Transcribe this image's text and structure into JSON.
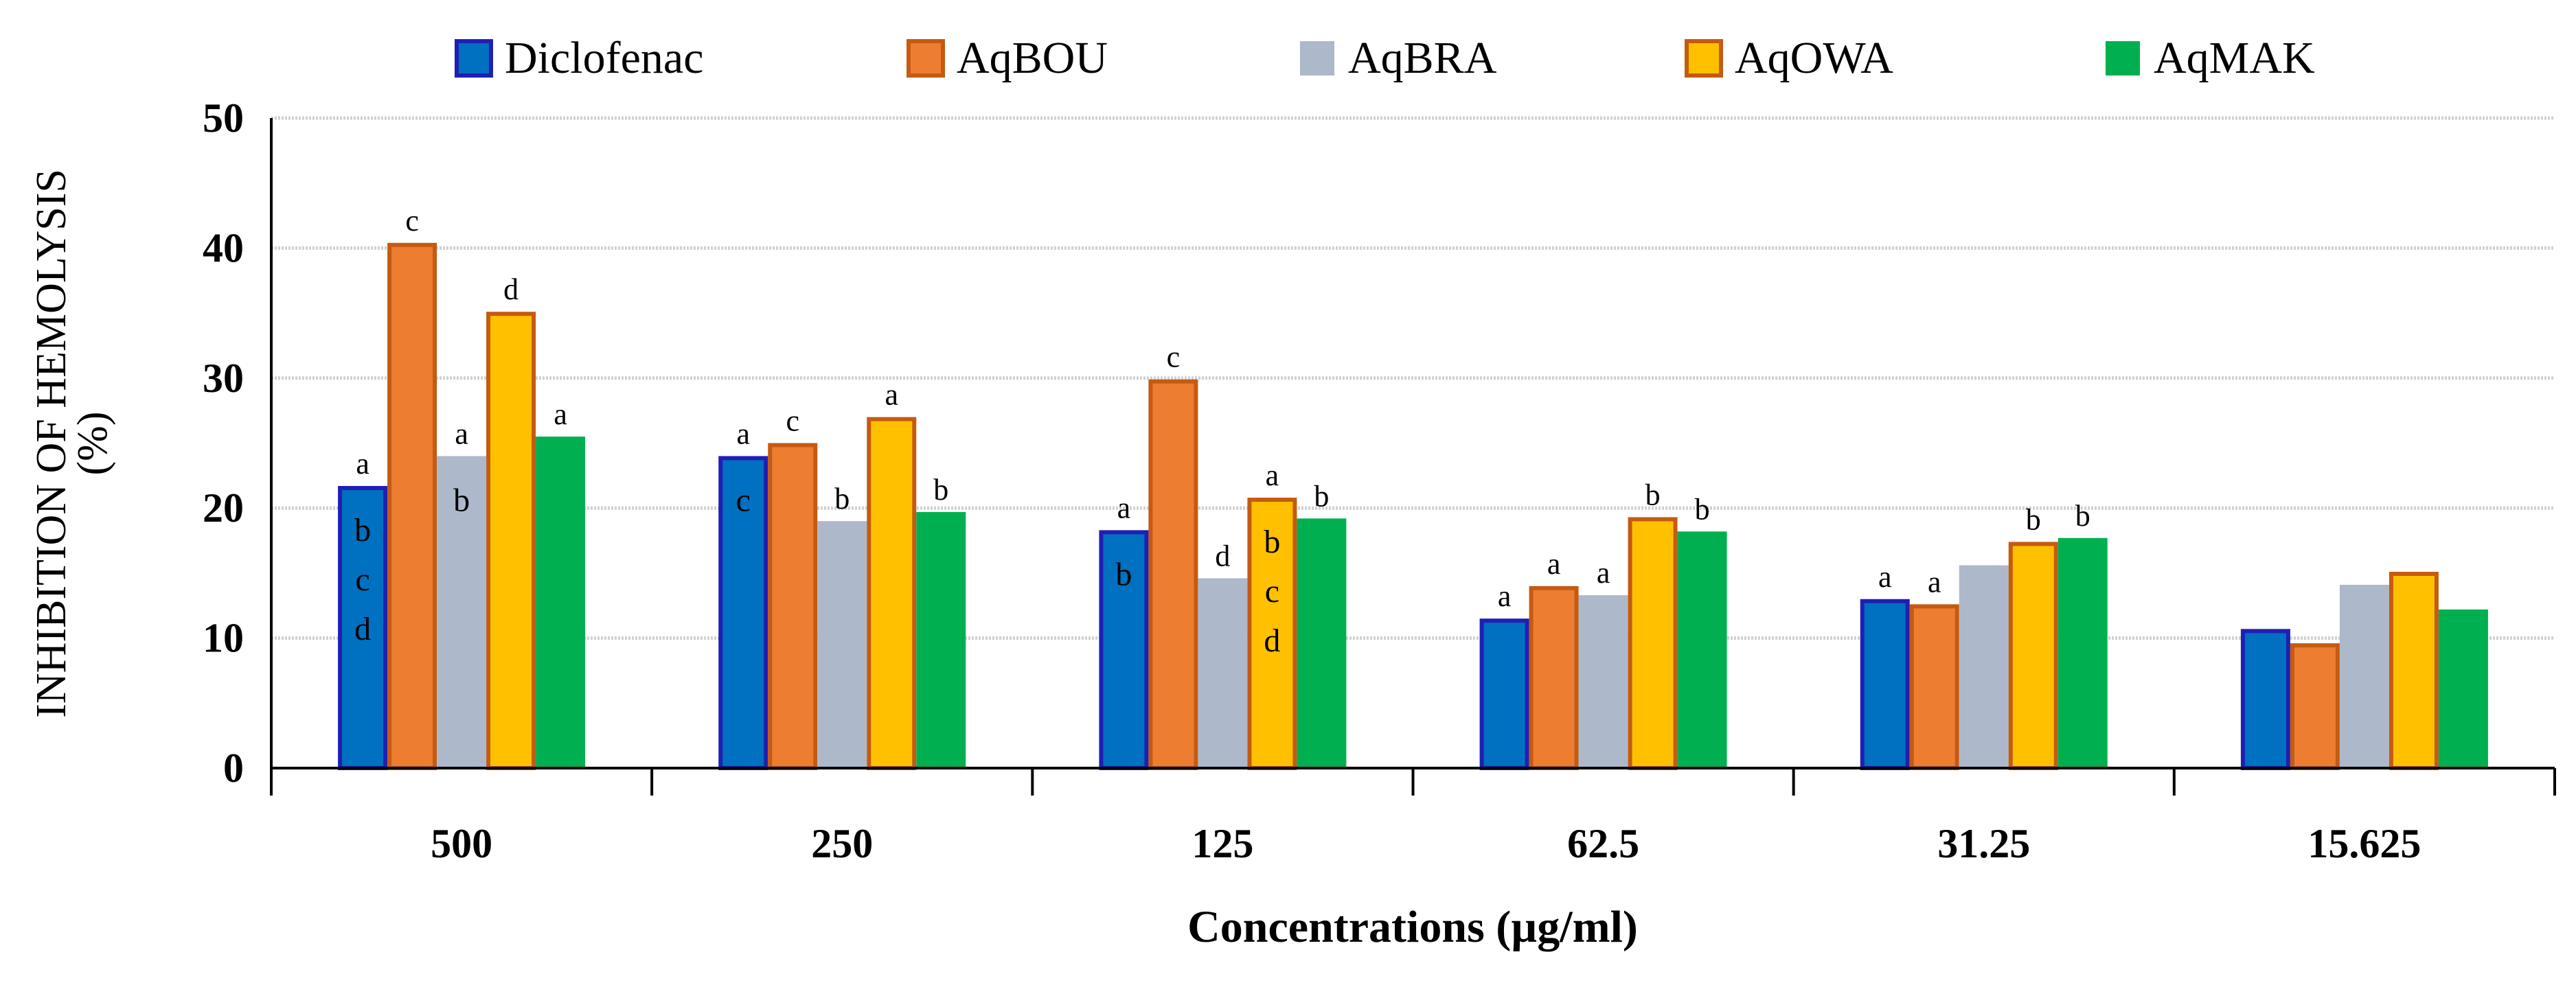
{
  "chart_data": {
    "type": "bar",
    "title": "",
    "xlabel": "Concentrations (µg/ml)",
    "ylabel": "INHIBITION OF HEMOLYSIS",
    "ylabel_unit": "(%)",
    "ylim": [
      0,
      50
    ],
    "yticks": [
      "0",
      "10",
      "20",
      "30",
      "40",
      "50"
    ],
    "grid": true,
    "legend_position": "top",
    "categories": [
      "500",
      "250",
      "125",
      "62.5",
      "31.25",
      "15.625"
    ],
    "series": [
      {
        "name": "Diclofenac",
        "color": "#0070C0",
        "stroke": "#1F1FB4",
        "values": [
          21.7,
          24.0,
          18.3,
          11.5,
          13.0,
          10.7
        ],
        "labels_above": [
          "a",
          "a",
          "a",
          "a",
          "a",
          ""
        ],
        "labels_inside": [
          [
            "b",
            "c",
            "d"
          ],
          [
            "c"
          ],
          [
            "b"
          ],
          [],
          [],
          []
        ]
      },
      {
        "name": "AqBOU",
        "color": "#ED7D31",
        "stroke": "#C55A11",
        "values": [
          40.4,
          25.0,
          29.9,
          14.0,
          12.6,
          9.6
        ],
        "labels_above": [
          "c",
          "c",
          "c",
          "a",
          "a",
          ""
        ],
        "labels_inside": [
          [],
          [],
          [],
          [],
          [],
          []
        ]
      },
      {
        "name": "AqBRA",
        "color": "#ADB9CA",
        "stroke": "",
        "values": [
          24.0,
          19.0,
          14.6,
          13.3,
          15.6,
          14.1
        ],
        "labels_above": [
          "a",
          "b",
          "d",
          "a",
          "",
          ""
        ],
        "labels_inside": [
          [
            "b"
          ],
          [],
          [],
          [],
          [],
          []
        ]
      },
      {
        "name": "AqOWA",
        "color": "#FFC000",
        "stroke": "#C55A11",
        "values": [
          35.1,
          27.0,
          20.8,
          19.3,
          17.4,
          15.1
        ],
        "labels_above": [
          "d",
          "a",
          "a",
          "b",
          "b",
          ""
        ],
        "labels_inside": [
          [],
          [],
          [
            "b",
            "c",
            "d"
          ],
          [],
          [],
          []
        ]
      },
      {
        "name": "AqMAK",
        "color": "#00B050",
        "stroke": "",
        "values": [
          25.5,
          19.7,
          19.2,
          18.2,
          17.7,
          12.2
        ],
        "labels_above": [
          "a",
          "b",
          "b",
          "b",
          "b",
          ""
        ],
        "labels_inside": [
          [],
          [],
          [],
          [],
          [],
          []
        ]
      }
    ]
  }
}
